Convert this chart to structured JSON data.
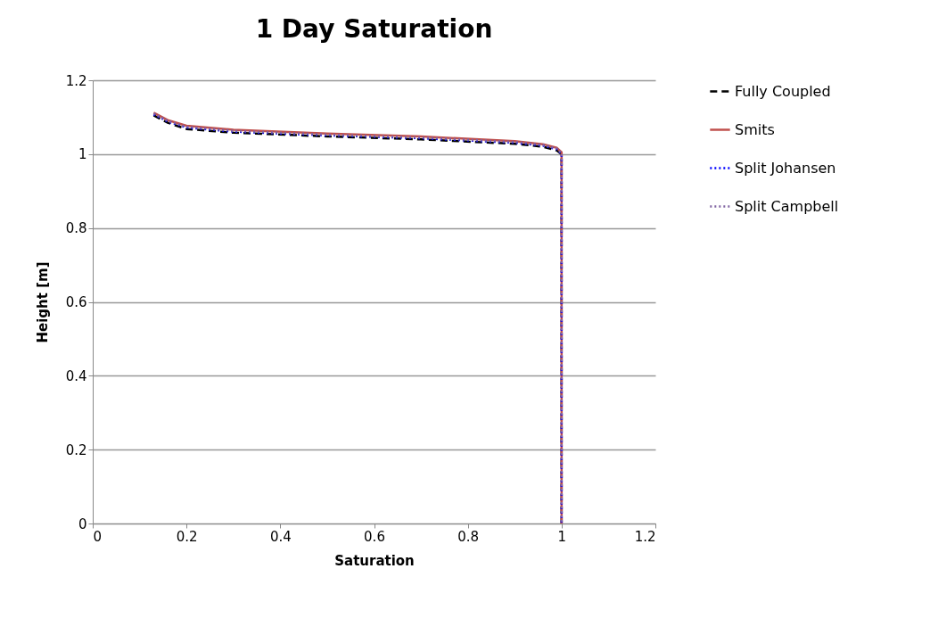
{
  "chart_data": {
    "type": "line",
    "title": "1 Day Saturation",
    "xlabel": "Saturation",
    "ylabel": "Height [m]",
    "xlim": [
      0,
      1.2
    ],
    "xticks": [
      0,
      0.2,
      0.4,
      0.6,
      0.8,
      1,
      1.2
    ],
    "ylim": [
      0,
      1.2
    ],
    "yticks": [
      0,
      0.2,
      0.4,
      0.6,
      0.8,
      1,
      1.2
    ],
    "grid": "y",
    "legend": "right",
    "marker": "none",
    "series": [
      {
        "name": "Fully Coupled",
        "color": "#000000",
        "line_style": "dashed",
        "x": [
          0.13,
          0.16,
          0.2,
          0.3,
          0.5,
          0.7,
          0.9,
          0.96,
          0.99,
          1,
          1
        ],
        "values": [
          1.105,
          1.085,
          1.068,
          1.058,
          1.048,
          1.04,
          1.028,
          1.02,
          1.01,
          1.0,
          0
        ]
      },
      {
        "name": "Smits",
        "color": "#c0504d",
        "line_style": "solid",
        "x": [
          0.13,
          0.16,
          0.2,
          0.3,
          0.5,
          0.7,
          0.9,
          0.96,
          0.99,
          1,
          1
        ],
        "values": [
          1.112,
          1.092,
          1.077,
          1.066,
          1.056,
          1.048,
          1.035,
          1.027,
          1.017,
          1.005,
          0
        ]
      },
      {
        "name": "Split Johansen",
        "color": "#0000ff",
        "line_style": "dotted",
        "x": [
          0.13,
          0.16,
          0.2,
          0.3,
          0.5,
          0.7,
          0.9,
          0.96,
          0.99,
          1,
          1
        ],
        "values": [
          1.108,
          1.088,
          1.072,
          1.061,
          1.051,
          1.043,
          1.031,
          1.023,
          1.013,
          1.0,
          0
        ]
      },
      {
        "name": "Split Campbell",
        "color": "#8064a2",
        "line_style": "dotted",
        "x": [
          0.13,
          0.16,
          0.2,
          0.3,
          0.5,
          0.7,
          0.9,
          0.96,
          0.99,
          1,
          1
        ],
        "values": [
          1.11,
          1.09,
          1.074,
          1.063,
          1.053,
          1.045,
          1.033,
          1.025,
          1.015,
          1.002,
          0
        ]
      }
    ]
  }
}
